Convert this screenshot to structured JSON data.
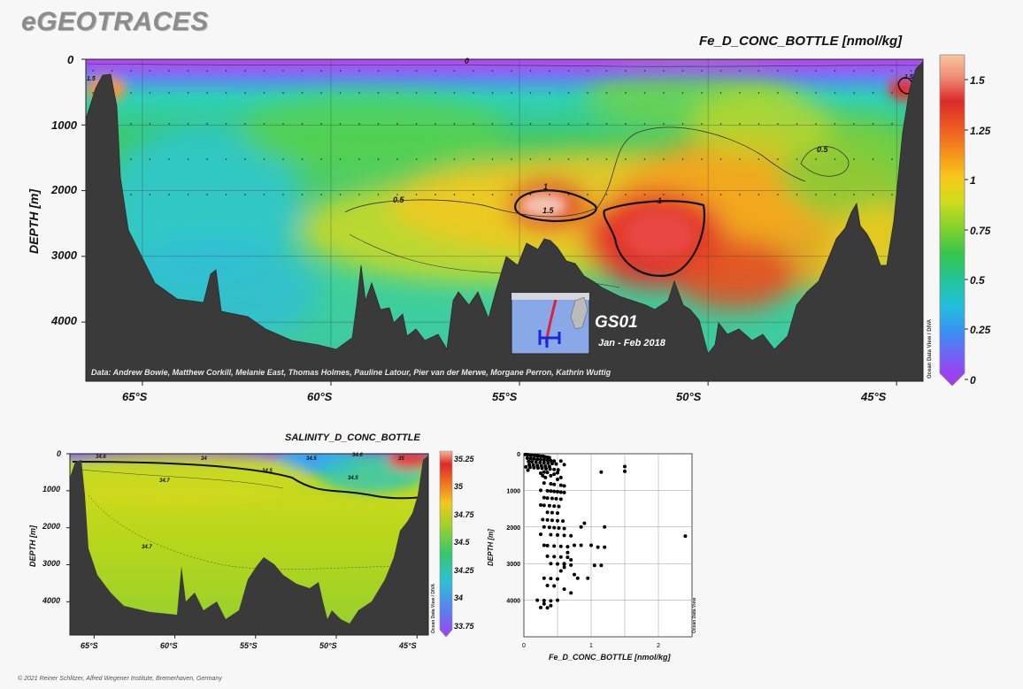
{
  "brand": "eGEOTRACES",
  "footer": "© 2021 Reiner Schlitzer, Alfred Wegener Institute, Bremerhaven, Germany",
  "odv_label": "Ocean Data View / DIVA",
  "odv_label_short": "Ocean Data View",
  "main_section": {
    "title": "Fe_D_CONC_BOTTLE [nmol/kg]",
    "ylabel": "DEPTH [m]",
    "yticks": [
      "0",
      "1000",
      "2000",
      "3000",
      "4000"
    ],
    "xticks": [
      "65°S",
      "60°S",
      "55°S",
      "50°S",
      "45°S"
    ],
    "colorbar_ticks": [
      "1.5",
      "1.25",
      "1",
      "0.75",
      "0.5",
      "0.25",
      "0"
    ],
    "contour_labels": [
      "0",
      "0.5",
      "0.5",
      "1",
      "1.5",
      "1",
      "1.5",
      "1.5"
    ],
    "credits": "Data: Andrew Bowie, Matthew Corkill, Melanie East, Thomas Holmes, Pauline Latour, Pier van der Merwe, Morgane Perron, Kathrin Wuttig",
    "inset": {
      "cruise": "GS01",
      "dates": "Jan - Feb 2018"
    }
  },
  "salinity_section": {
    "title": "SALINITY_D_CONC_BOTTLE",
    "ylabel": "DEPTH [m]",
    "yticks": [
      "0",
      "1000",
      "2000",
      "3000",
      "4000"
    ],
    "xticks": [
      "65°S",
      "60°S",
      "55°S",
      "50°S",
      "45°S"
    ],
    "colorbar_ticks": [
      "35.25",
      "35",
      "34.75",
      "34.5",
      "34.25",
      "34",
      "33.75"
    ],
    "contour_labels": [
      "34.6",
      "34",
      "34.5",
      "34.5",
      "34.6",
      "35",
      "34.7",
      "34.5",
      "34.7"
    ]
  },
  "chart_data": [
    {
      "type": "heatmap",
      "title": "Fe_D_CONC_BOTTLE [nmol/kg]",
      "ylabel": "DEPTH [m]",
      "x_ticks": [
        "65°S",
        "60°S",
        "55°S",
        "50°S",
        "45°S"
      ],
      "x_range": [
        -66.5,
        -44.3
      ],
      "ylim": [
        4900,
        0
      ],
      "color_range": [
        0,
        1.6
      ],
      "contour_levels": [
        0,
        0.5,
        1,
        1.5
      ],
      "features": [
        {
          "latitude": -53.7,
          "depth": 2250,
          "value": 1.6
        },
        {
          "latitude": -51.0,
          "depth": 2600,
          "value": 1.2
        },
        {
          "latitude": -66.0,
          "depth": 350,
          "value": 1.5
        },
        {
          "latitude": -44.6,
          "depth": 400,
          "value": 1.5
        },
        {
          "latitude": -58.0,
          "depth": 2500,
          "value": 0.3
        },
        {
          "latitude": -62.0,
          "depth": 3500,
          "value": 0.4
        }
      ],
      "colorscale": [
        "#a020ef",
        "#3b7ef0",
        "#22b8d2",
        "#2fc65c",
        "#8fd028",
        "#f2d21a",
        "#f59a12",
        "#e23a2c",
        "#f5c5a0"
      ]
    },
    {
      "type": "heatmap",
      "title": "SALINITY_D_CONC_BOTTLE",
      "ylabel": "DEPTH [m]",
      "x_ticks": [
        "65°S",
        "60°S",
        "55°S",
        "50°S",
        "45°S"
      ],
      "x_range": [
        -66.5,
        -44.3
      ],
      "ylim": [
        4900,
        0
      ],
      "color_range": [
        33.7,
        35.3
      ],
      "contour_levels": [
        34,
        34.5,
        34.6,
        34.7,
        35
      ]
    },
    {
      "type": "scatter",
      "xlabel": "Fe_D_CONC_BOTTLE [nmol/kg]",
      "ylabel": "DEPTH [m]",
      "xlim": [
        0,
        2.5
      ],
      "ylim": [
        5000,
        0
      ],
      "x_ticks": [
        "0",
        "1",
        "2"
      ],
      "y_ticks": [
        "0",
        "1000",
        "2000",
        "3000",
        "4000"
      ],
      "points": [
        [
          0.02,
          20
        ],
        [
          0.05,
          25
        ],
        [
          0.08,
          30
        ],
        [
          0.1,
          35
        ],
        [
          0.12,
          40
        ],
        [
          0.15,
          45
        ],
        [
          0.18,
          50
        ],
        [
          0.2,
          55
        ],
        [
          0.22,
          60
        ],
        [
          0.25,
          65
        ],
        [
          0.28,
          70
        ],
        [
          0.3,
          80
        ],
        [
          0.32,
          90
        ],
        [
          0.35,
          100
        ],
        [
          0.38,
          110
        ],
        [
          0.05,
          120
        ],
        [
          0.1,
          130
        ],
        [
          0.15,
          140
        ],
        [
          0.2,
          150
        ],
        [
          0.25,
          160
        ],
        [
          0.3,
          170
        ],
        [
          0.35,
          180
        ],
        [
          0.4,
          190
        ],
        [
          0.45,
          200
        ],
        [
          0.07,
          210
        ],
        [
          0.12,
          220
        ],
        [
          0.18,
          230
        ],
        [
          0.24,
          240
        ],
        [
          0.3,
          250
        ],
        [
          0.36,
          260
        ],
        [
          0.42,
          270
        ],
        [
          0.48,
          280
        ],
        [
          0.55,
          200
        ],
        [
          0.6,
          300
        ],
        [
          0.08,
          300
        ],
        [
          0.14,
          310
        ],
        [
          0.2,
          320
        ],
        [
          0.26,
          330
        ],
        [
          0.32,
          340
        ],
        [
          0.38,
          350
        ],
        [
          0.03,
          360
        ],
        [
          0.09,
          370
        ],
        [
          0.15,
          380
        ],
        [
          0.21,
          390
        ],
        [
          0.27,
          400
        ],
        [
          0.33,
          410
        ],
        [
          0.39,
          420
        ],
        [
          0.45,
          430
        ],
        [
          0.51,
          440
        ],
        [
          0.06,
          450
        ],
        [
          0.3,
          500
        ],
        [
          0.35,
          510
        ],
        [
          0.25,
          530
        ],
        [
          0.5,
          520
        ],
        [
          0.45,
          560
        ],
        [
          0.4,
          600
        ],
        [
          0.55,
          650
        ],
        [
          0.5,
          700
        ],
        [
          0.28,
          600
        ],
        [
          0.32,
          650
        ],
        [
          0.3,
          800
        ],
        [
          0.4,
          820
        ],
        [
          0.45,
          840
        ],
        [
          0.55,
          860
        ],
        [
          0.6,
          880
        ],
        [
          0.25,
          1000
        ],
        [
          0.35,
          1010
        ],
        [
          0.4,
          1020
        ],
        [
          0.45,
          1030
        ],
        [
          0.5,
          1040
        ],
        [
          0.55,
          1050
        ],
        [
          0.6,
          1060
        ],
        [
          0.3,
          1200
        ],
        [
          0.35,
          1210
        ],
        [
          0.42,
          1220
        ],
        [
          0.48,
          1230
        ],
        [
          0.55,
          1240
        ],
        [
          0.25,
          1400
        ],
        [
          0.3,
          1410
        ],
        [
          0.38,
          1420
        ],
        [
          0.45,
          1430
        ],
        [
          0.52,
          1440
        ],
        [
          0.35,
          1600
        ],
        [
          0.42,
          1610
        ],
        [
          0.5,
          1620
        ],
        [
          0.28,
          1800
        ],
        [
          0.35,
          1810
        ],
        [
          0.42,
          1820
        ],
        [
          0.5,
          1830
        ],
        [
          0.58,
          1840
        ],
        [
          0.3,
          2000
        ],
        [
          0.38,
          2010
        ],
        [
          0.45,
          2020
        ],
        [
          0.52,
          2030
        ],
        [
          0.6,
          2040
        ],
        [
          0.25,
          2200
        ],
        [
          0.4,
          2210
        ],
        [
          0.5,
          2220
        ],
        [
          0.6,
          2230
        ],
        [
          0.7,
          2240
        ],
        [
          0.3,
          2500
        ],
        [
          0.35,
          2510
        ],
        [
          0.45,
          2520
        ],
        [
          0.55,
          2530
        ],
        [
          0.65,
          2540
        ],
        [
          0.75,
          2500
        ],
        [
          0.85,
          2500
        ],
        [
          0.35,
          2800
        ],
        [
          0.45,
          2810
        ],
        [
          0.55,
          2820
        ],
        [
          0.65,
          2830
        ],
        [
          0.4,
          3000
        ],
        [
          0.5,
          3010
        ],
        [
          0.6,
          3020
        ],
        [
          0.7,
          3040
        ],
        [
          0.3,
          3400
        ],
        [
          0.4,
          3410
        ],
        [
          0.5,
          3420
        ],
        [
          0.35,
          3600
        ],
        [
          0.45,
          3610
        ],
        [
          0.6,
          3700
        ],
        [
          0.2,
          4000
        ],
        [
          0.3,
          4010
        ],
        [
          0.4,
          4020
        ],
        [
          0.25,
          4200
        ],
        [
          0.35,
          4210
        ],
        [
          0.6,
          3000
        ],
        [
          0.65,
          2700
        ],
        [
          0.6,
          3100
        ],
        [
          0.7,
          2900
        ],
        [
          0.55,
          3200
        ],
        [
          0.75,
          3300
        ],
        [
          0.8,
          3400
        ],
        [
          0.9,
          1900
        ],
        [
          1.0,
          2500
        ],
        [
          1.1,
          2550
        ],
        [
          1.2,
          2550
        ],
        [
          1.15,
          500
        ],
        [
          1.5,
          350
        ],
        [
          1.5,
          480
        ],
        [
          1.2,
          2000
        ],
        [
          1.05,
          3050
        ],
        [
          1.15,
          3050
        ],
        [
          0.85,
          2000
        ],
        [
          0.95,
          3400
        ],
        [
          0.7,
          3800
        ],
        [
          0.5,
          4000
        ],
        [
          0.3,
          4100
        ],
        [
          2.4,
          2250
        ],
        [
          0.4,
          4150
        ]
      ]
    }
  ]
}
